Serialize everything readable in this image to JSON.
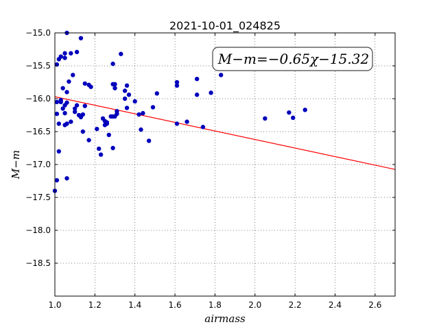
{
  "chart_data": {
    "type": "scatter",
    "title": "2021-10-01_024825",
    "xlabel": "airmass",
    "ylabel": "M−m",
    "xlim": [
      1.0,
      2.7
    ],
    "ylim": [
      -19.0,
      -15.0
    ],
    "y_inverted": true,
    "xticks": [
      1.0,
      1.2,
      1.4,
      1.6,
      1.8,
      2.0,
      2.2,
      2.4,
      2.6
    ],
    "xtick_labels": [
      "1.0",
      "1.2",
      "1.4",
      "1.6",
      "1.8",
      "2.0",
      "2.2",
      "2.4",
      "2.6"
    ],
    "yticks": [
      -15.0,
      -15.5,
      -16.0,
      -16.5,
      -17.0,
      -17.5,
      -18.0,
      -18.5
    ],
    "ytick_labels": [
      "−15.0",
      "−15.5",
      "−16.0",
      "−16.5",
      "−17.0",
      "−17.5",
      "−18.0",
      "−18.5"
    ],
    "grid": true,
    "annotation": "M−m=−0.65χ−15.32",
    "fit_line": {
      "slope": -0.65,
      "intercept": -15.32,
      "color": "#ff0000"
    },
    "marker_color": "#0000bb",
    "points": [
      [
        1.0,
        -17.4
      ],
      [
        1.01,
        -17.24
      ],
      [
        1.01,
        -16.05
      ],
      [
        1.01,
        -16.23
      ],
      [
        1.01,
        -15.48
      ],
      [
        1.02,
        -15.4
      ],
      [
        1.02,
        -16.8
      ],
      [
        1.02,
        -16.38
      ],
      [
        1.03,
        -15.36
      ],
      [
        1.03,
        -16.02
      ],
      [
        1.03,
        -16.05
      ],
      [
        1.04,
        -15.84
      ],
      [
        1.04,
        -16.15
      ],
      [
        1.05,
        -16.1
      ],
      [
        1.05,
        -16.22
      ],
      [
        1.05,
        -15.38
      ],
      [
        1.05,
        -15.31
      ],
      [
        1.05,
        -16.4
      ],
      [
        1.06,
        -17.21
      ],
      [
        1.06,
        -15.0
      ],
      [
        1.06,
        -16.06
      ],
      [
        1.06,
        -15.9
      ],
      [
        1.06,
        -16.38
      ],
      [
        1.07,
        -15.74
      ],
      [
        1.08,
        -15.31
      ],
      [
        1.08,
        -16.35
      ],
      [
        1.09,
        -15.64
      ],
      [
        1.1,
        -16.15
      ],
      [
        1.1,
        -16.2
      ],
      [
        1.11,
        -16.1
      ],
      [
        1.11,
        -15.29
      ],
      [
        1.12,
        -16.25
      ],
      [
        1.13,
        -15.08
      ],
      [
        1.13,
        -16.28
      ],
      [
        1.14,
        -16.5
      ],
      [
        1.14,
        -16.24
      ],
      [
        1.15,
        -16.11
      ],
      [
        1.15,
        -15.77
      ],
      [
        1.17,
        -16.63
      ],
      [
        1.17,
        -15.79
      ],
      [
        1.18,
        -15.82
      ],
      [
        1.21,
        -16.46
      ],
      [
        1.22,
        -16.76
      ],
      [
        1.23,
        -16.85
      ],
      [
        1.24,
        -16.3
      ],
      [
        1.25,
        -16.4
      ],
      [
        1.25,
        -16.34
      ],
      [
        1.26,
        -16.38
      ],
      [
        1.26,
        -16.36
      ],
      [
        1.27,
        -16.55
      ],
      [
        1.28,
        -16.27
      ],
      [
        1.29,
        -15.47
      ],
      [
        1.29,
        -15.78
      ],
      [
        1.29,
        -16.27
      ],
      [
        1.29,
        -16.75
      ],
      [
        1.3,
        -16.27
      ],
      [
        1.3,
        -15.84
      ],
      [
        1.3,
        -15.78
      ],
      [
        1.31,
        -16.19
      ],
      [
        1.31,
        -16.23
      ],
      [
        1.33,
        -15.32
      ],
      [
        1.35,
        -15.88
      ],
      [
        1.35,
        -16.0
      ],
      [
        1.36,
        -15.8
      ],
      [
        1.36,
        -16.14
      ],
      [
        1.37,
        -15.94
      ],
      [
        1.4,
        -16.04
      ],
      [
        1.42,
        -16.24
      ],
      [
        1.43,
        -16.47
      ],
      [
        1.44,
        -16.22
      ],
      [
        1.47,
        -16.64
      ],
      [
        1.49,
        -16.13
      ],
      [
        1.51,
        -15.92
      ],
      [
        1.61,
        -15.75
      ],
      [
        1.61,
        -15.8
      ],
      [
        1.61,
        -16.38
      ],
      [
        1.66,
        -16.35
      ],
      [
        1.71,
        -15.94
      ],
      [
        1.71,
        -15.7
      ],
      [
        1.74,
        -16.43
      ],
      [
        1.78,
        -15.91
      ],
      [
        1.83,
        -15.64
      ],
      [
        2.05,
        -16.3
      ],
      [
        2.17,
        -16.21
      ],
      [
        2.19,
        -16.29
      ],
      [
        2.25,
        -16.17
      ]
    ]
  }
}
